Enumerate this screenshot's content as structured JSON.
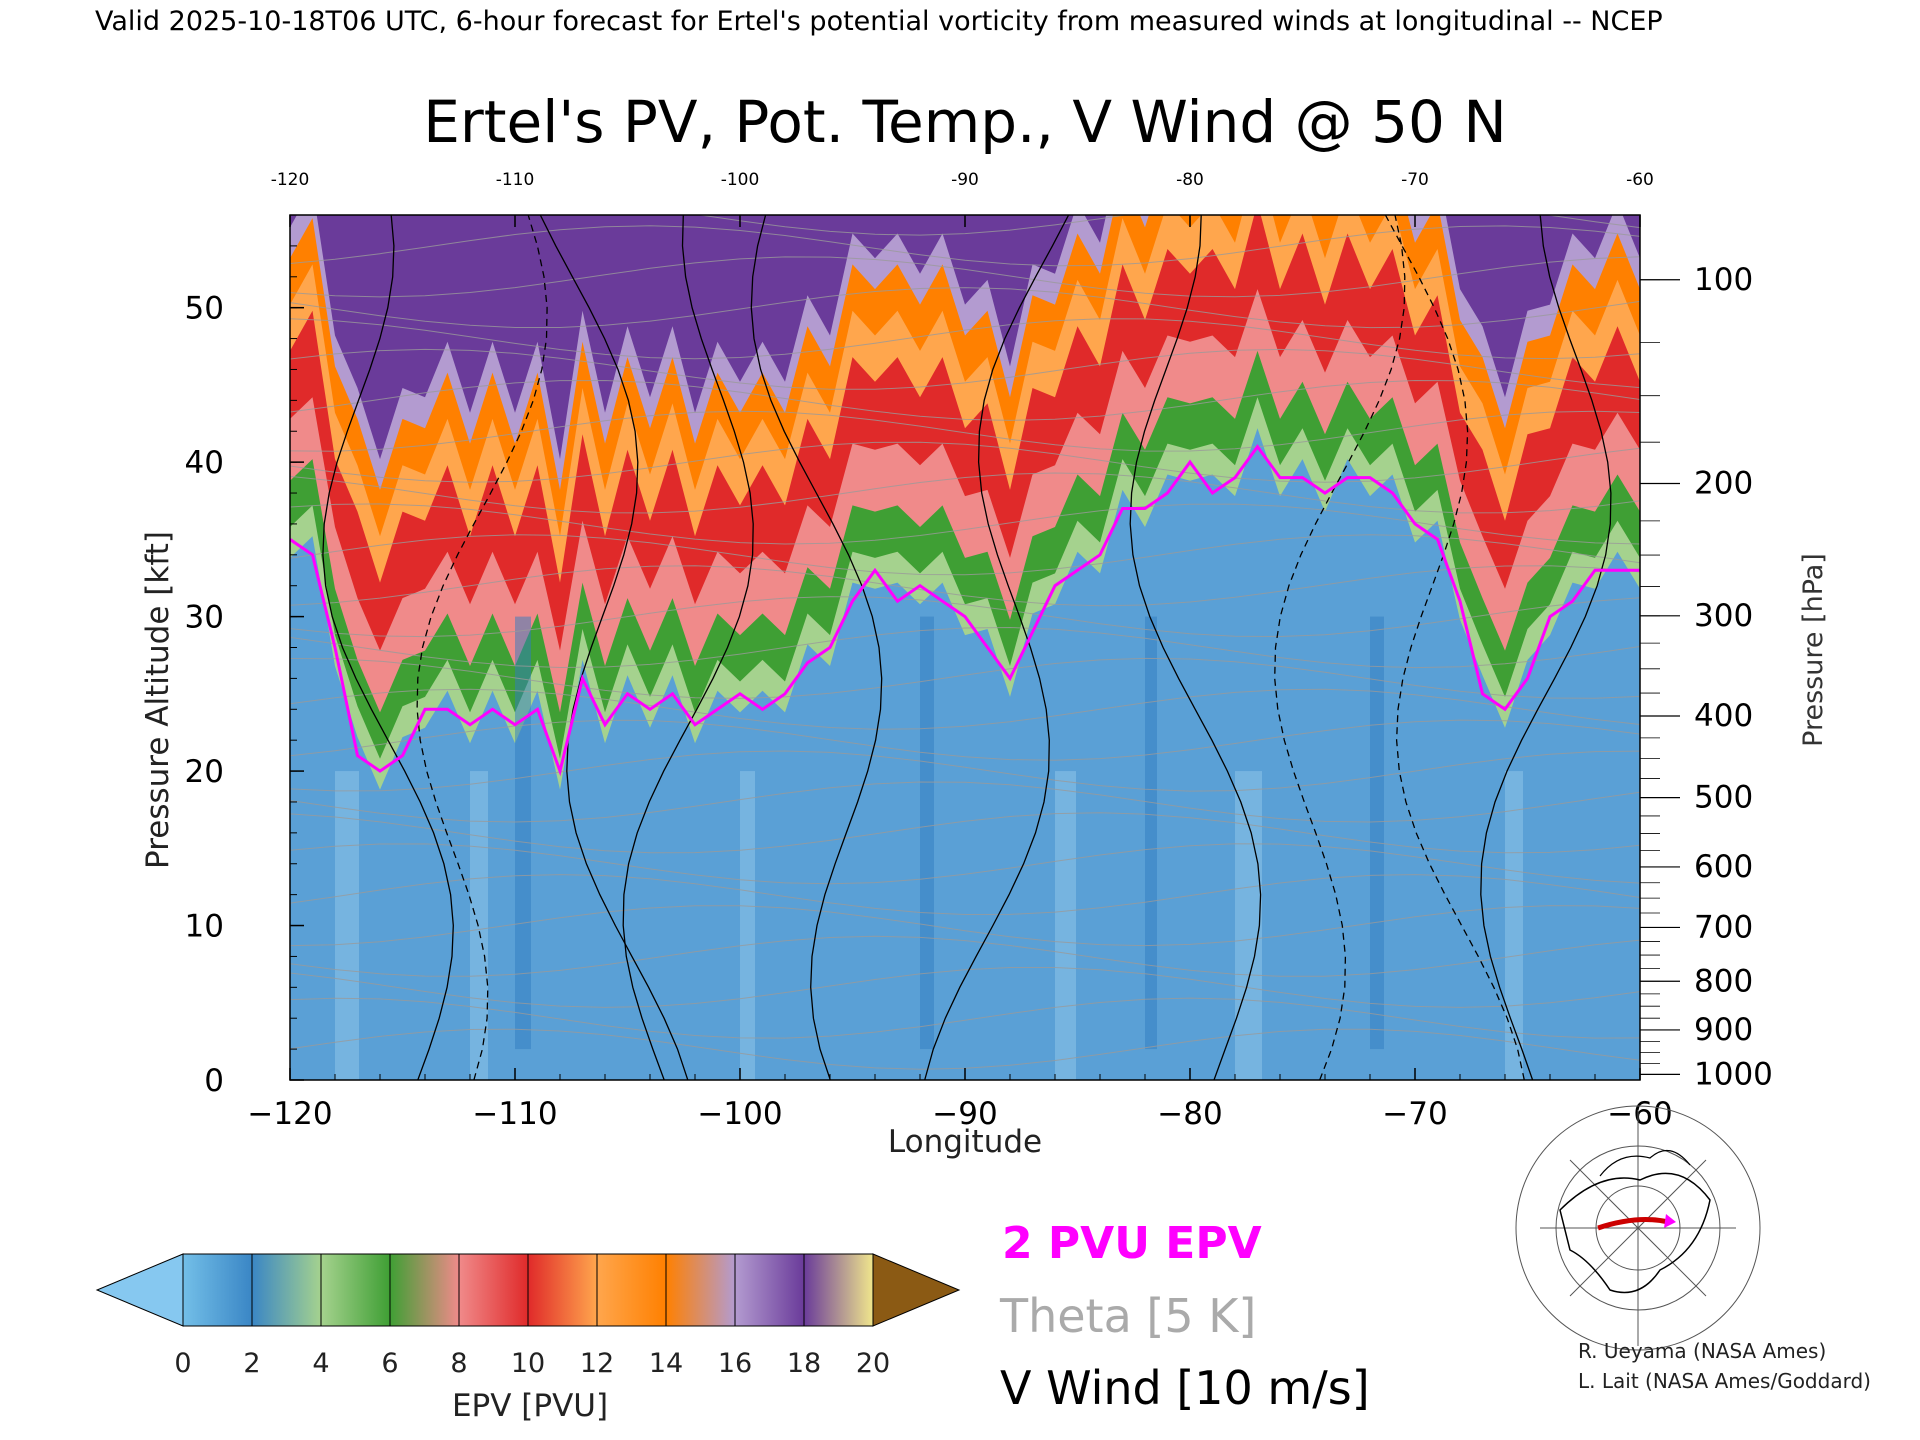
{
  "header": "Valid 2025-10-18T06 UTC, 6-hour forecast for Ertel's potential vorticity from measured winds at longitudinal -- NCEP",
  "chart_data": {
    "type": "heatmap",
    "title": "Ertel's PV, Pot. Temp., V Wind @ 50 N",
    "xlabel": "Longitude",
    "ylabel": "Pressure Altitude [kft]",
    "y2label": "Pressure [hPa]",
    "xlim": [
      -120,
      -60
    ],
    "ylim": [
      0,
      56
    ],
    "x_ticks": [
      -120,
      -110,
      -100,
      -90,
      -80,
      -70,
      -60
    ],
    "x_tick_labels": [
      "−120",
      "−110",
      "−100",
      "−90",
      "−80",
      "−70",
      "−60"
    ],
    "x_top_tick_labels": [
      "-120",
      "-110",
      "-100",
      "-90",
      "-80",
      "-70",
      "-60"
    ],
    "y_ticks": [
      0,
      10,
      20,
      30,
      40,
      50
    ],
    "y_tick_labels": [
      "0",
      "10",
      "20",
      "30",
      "40",
      "50"
    ],
    "pressure_ticks": [
      {
        "hPa": 1000,
        "label": "1000"
      },
      {
        "hPa": 900,
        "label": "900"
      },
      {
        "hPa": 800,
        "label": "800"
      },
      {
        "hPa": 700,
        "label": "700"
      },
      {
        "hPa": 600,
        "label": "600"
      },
      {
        "hPa": 500,
        "label": "500"
      },
      {
        "hPa": 400,
        "label": "400"
      },
      {
        "hPa": 300,
        "label": "300"
      },
      {
        "hPa": 200,
        "label": "200"
      },
      {
        "hPa": 100,
        "label": "100"
      }
    ],
    "tropopause_2pvu": {
      "lon": [
        -120,
        -119,
        -118,
        -117,
        -116,
        -115,
        -114,
        -113,
        -112,
        -111,
        -110,
        -109,
        -108,
        -107,
        -106,
        -105,
        -104,
        -103,
        -102,
        -101,
        -100,
        -99,
        -98,
        -97,
        -96,
        -95,
        -94,
        -93,
        -92,
        -91,
        -90,
        -89,
        -88,
        -87,
        -86,
        -85,
        -84,
        -83,
        -82,
        -81,
        -80,
        -79,
        -78,
        -77,
        -76,
        -75,
        -74,
        -73,
        -72,
        -71,
        -70,
        -69,
        -68,
        -67,
        -66,
        -65,
        -64,
        -63,
        -62,
        -61,
        -60
      ],
      "alt_kft": [
        35,
        34,
        28,
        21,
        20,
        21,
        24,
        24,
        23,
        24,
        23,
        24,
        20,
        26,
        23,
        25,
        24,
        25,
        23,
        24,
        25,
        24,
        25,
        27,
        28,
        31,
        33,
        31,
        32,
        31,
        30,
        28,
        26,
        29,
        32,
        33,
        34,
        37,
        37,
        38,
        40,
        38,
        39,
        41,
        39,
        39,
        38,
        39,
        39,
        38,
        36,
        35,
        31,
        25,
        24,
        26,
        30,
        31,
        33,
        33,
        33
      ]
    },
    "epv_colorbar": {
      "label": "EPV [PVU]",
      "ticks": [
        "0",
        "2",
        "4",
        "6",
        "8",
        "10",
        "12",
        "14",
        "16",
        "18",
        "20"
      ],
      "colors": [
        "#73bfe8",
        "#3a86c5",
        "#a5d28e",
        "#3f9f34",
        "#f08a8a",
        "#e02a2a",
        "#ffa64d",
        "#ff8000",
        "#b39bd0",
        "#6a3b9a",
        "#f0e68c",
        "#8b5a14"
      ],
      "under_color": "#86c8f0",
      "over_color": "#8b5a14"
    }
  },
  "legend": {
    "pv": "2 PVU EPV",
    "theta": "Theta [5 K]",
    "wind": "V Wind [10 m/s]"
  },
  "credits": {
    "line1": "R. Ueyama (NASA Ames)",
    "line2": "L. Lait (NASA Ames/Goddard)"
  }
}
